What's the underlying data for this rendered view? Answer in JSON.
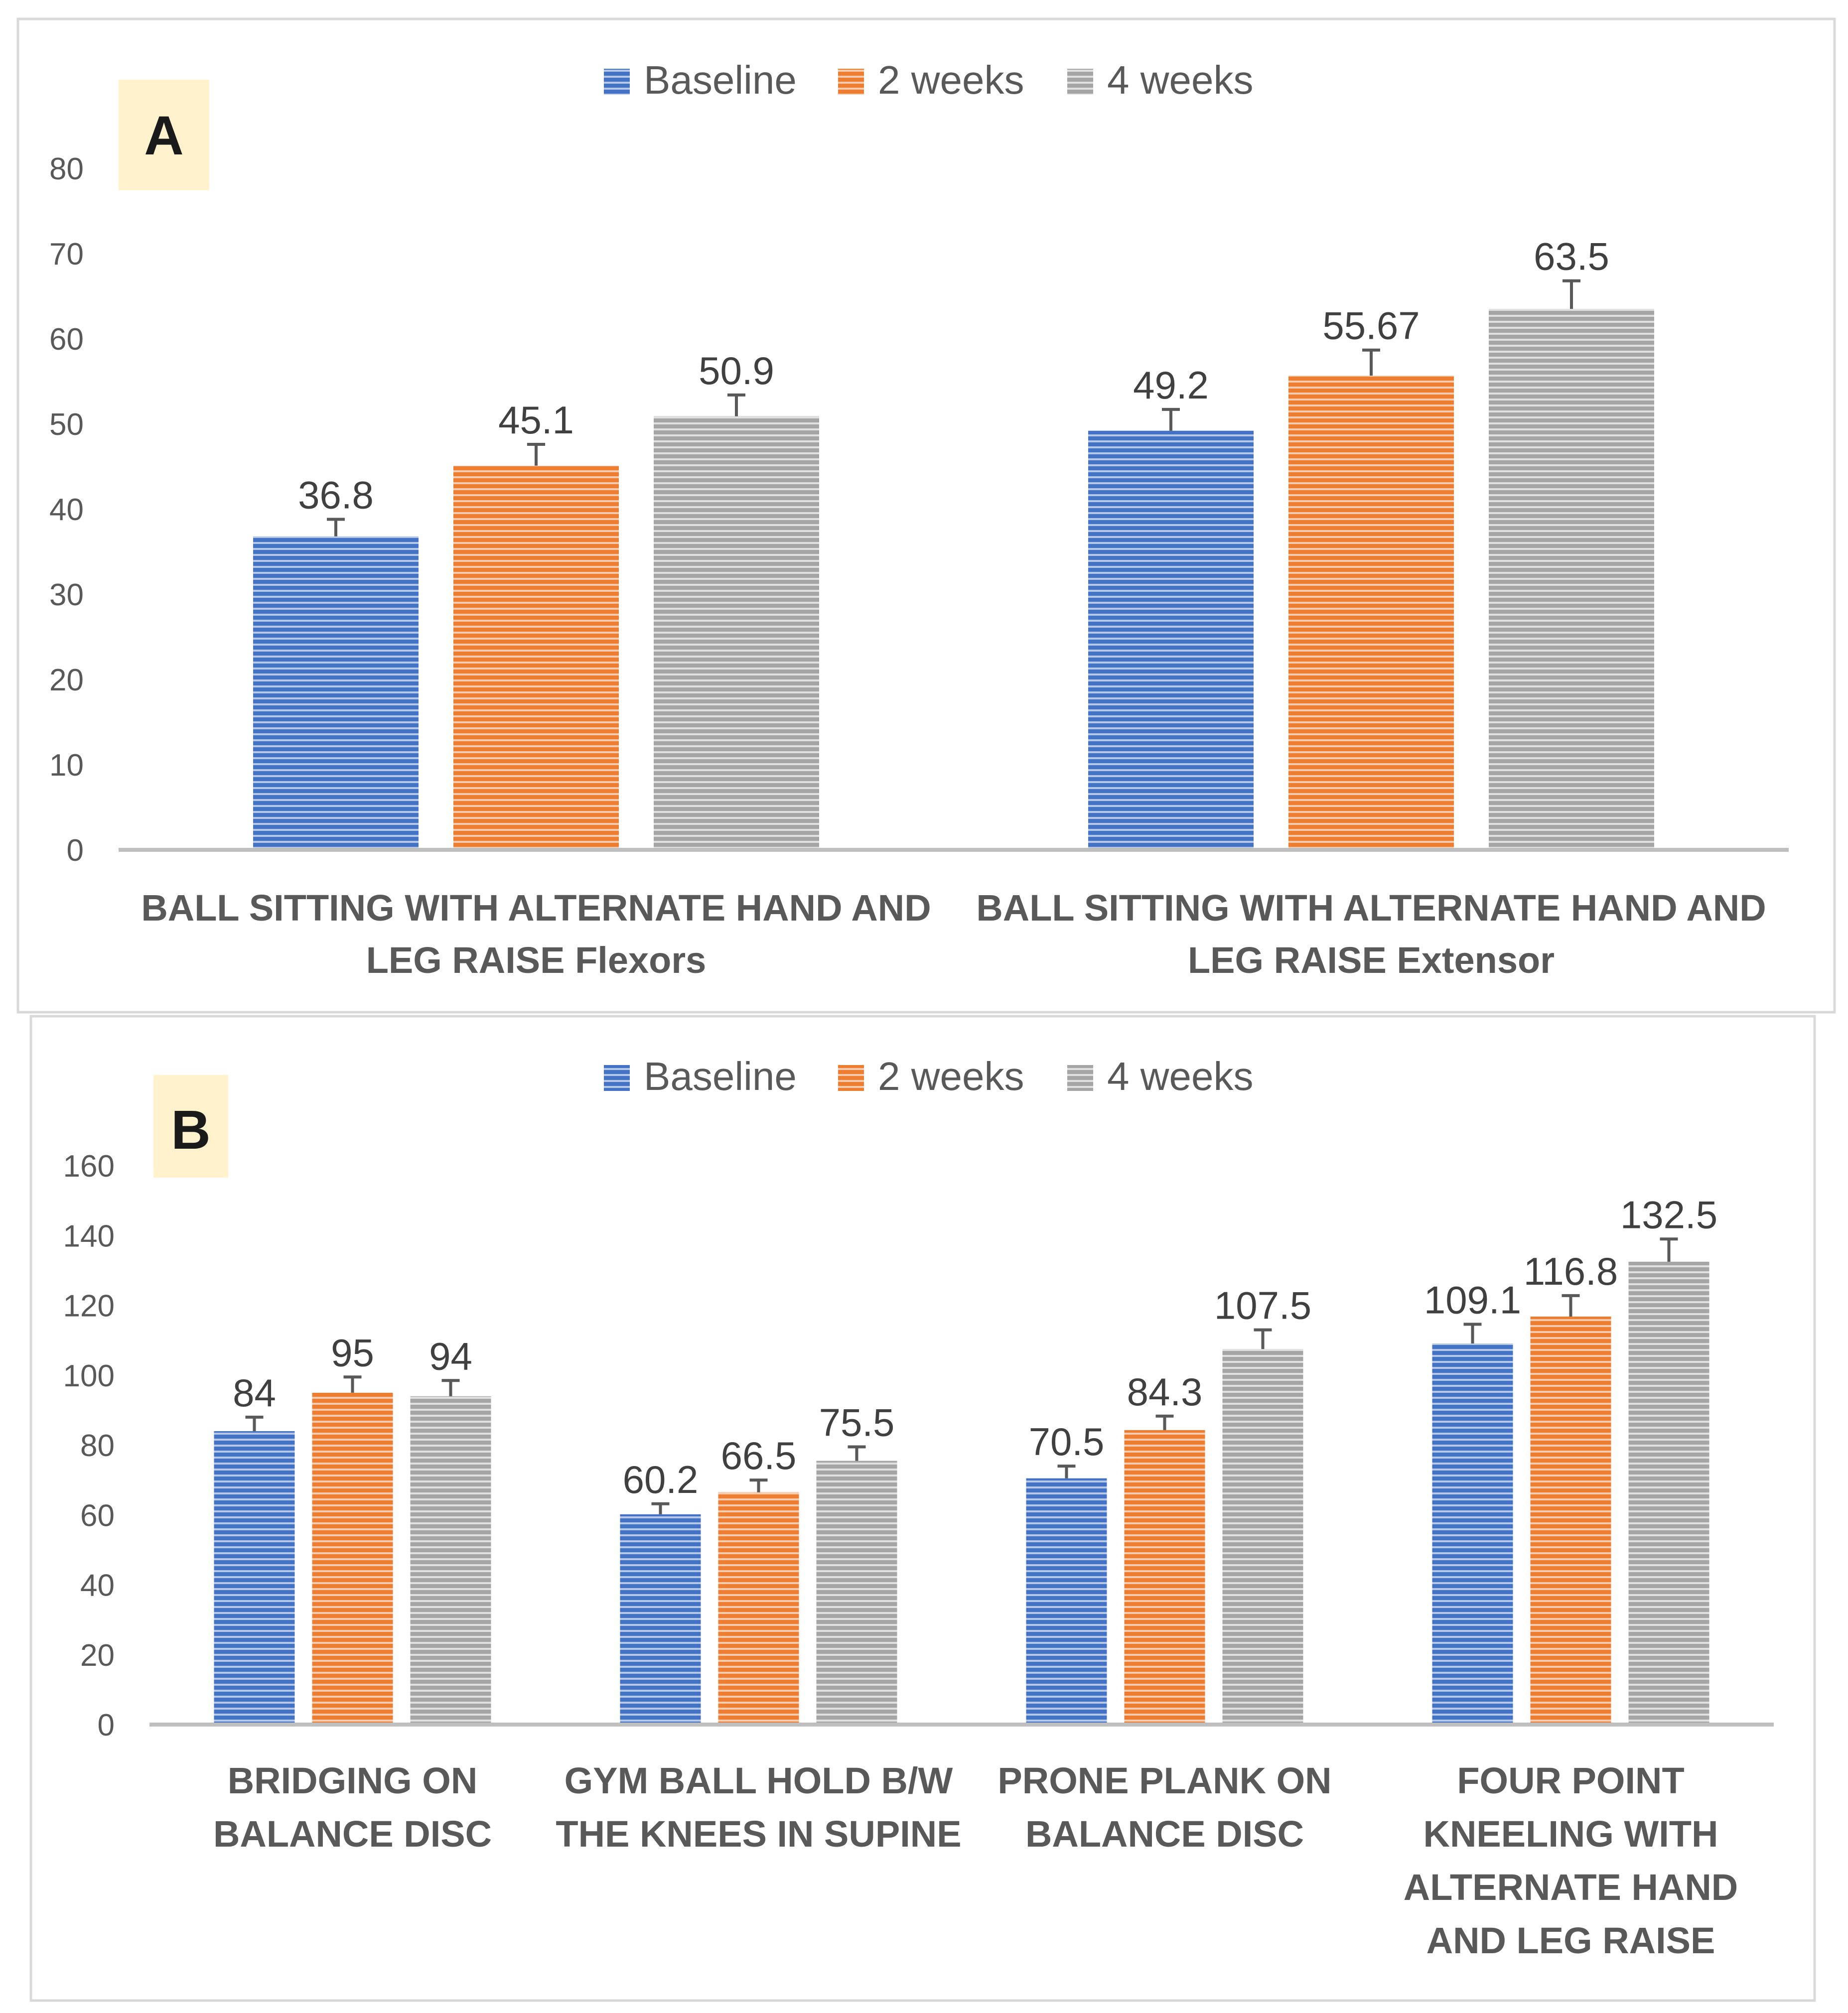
{
  "colors": {
    "baseline": "#4472c4",
    "two_weeks": "#ed7d31",
    "four_weeks": "#a5a5a5",
    "label_box": "#fff2cc",
    "axis": "#bfbfbf",
    "error_bar": "#595959"
  },
  "chart_data": [
    {
      "type": "bar",
      "panel_label": "A",
      "legend_placement": "top-center",
      "categories": [
        [
          "BALL SITTING WITH  ALTERNATE HAND AND",
          "LEG RAISE Flexors"
        ],
        [
          "BALL SITTING WITH  ALTERNATE HAND AND",
          "LEG RAISE Extensor"
        ]
      ],
      "series": [
        {
          "name": "Baseline",
          "values": [
            36.8,
            49.2
          ],
          "errors": [
            2.0,
            2.5
          ],
          "labels": [
            "36.8",
            "49.2"
          ]
        },
        {
          "name": "2 weeks",
          "values": [
            45.1,
            55.67
          ],
          "errors": [
            2.5,
            3.0
          ],
          "labels": [
            "45.1",
            "55.67"
          ]
        },
        {
          "name": "4 weeks",
          "values": [
            50.9,
            63.5
          ],
          "errors": [
            2.5,
            3.3
          ],
          "labels": [
            "50.9",
            "63.5"
          ]
        }
      ],
      "ylim": [
        0,
        80
      ],
      "yticks": [
        0,
        10,
        20,
        30,
        40,
        50,
        60,
        70,
        80
      ],
      "ytick_labels": [
        "0",
        "10",
        "20",
        "30",
        "40",
        "50",
        "60",
        "70",
        "80"
      ],
      "grid": false
    },
    {
      "type": "bar",
      "panel_label": "B",
      "legend_placement": "top-center",
      "categories": [
        [
          "BRIDGING ON",
          "BALANCE DISC"
        ],
        [
          "GYM BALL HOLD B/W",
          "THE KNEES IN SUPINE"
        ],
        [
          "PRONE PLANK ON",
          "BALANCE DISC"
        ],
        [
          "FOUR POINT",
          "KNEELING WITH",
          "ALTERNATE HAND",
          "AND LEG RAISE"
        ]
      ],
      "series": [
        {
          "name": "Baseline",
          "values": [
            84,
            60.2,
            70.5,
            109.1
          ],
          "errors": [
            4,
            3,
            3.5,
            5.5
          ],
          "labels": [
            "84",
            "60.2",
            "70.5",
            "109.1"
          ]
        },
        {
          "name": "2 weeks",
          "values": [
            95,
            66.5,
            84.3,
            116.8
          ],
          "errors": [
            4.5,
            3.5,
            4,
            6
          ],
          "labels": [
            "95",
            "66.5",
            "84.3",
            "116.8"
          ]
        },
        {
          "name": "4 weeks",
          "values": [
            94,
            75.5,
            107.5,
            132.5
          ],
          "errors": [
            4.5,
            4,
            5.5,
            6.5
          ],
          "labels": [
            "94",
            "75.5",
            "107.5",
            "132.5"
          ]
        }
      ],
      "ylim": [
        0,
        160
      ],
      "yticks": [
        0,
        20,
        40,
        60,
        80,
        100,
        120,
        140,
        160
      ],
      "ytick_labels": [
        "0",
        "20",
        "40",
        "60",
        "80",
        "100",
        "120",
        "140",
        "160"
      ],
      "grid": false
    }
  ]
}
